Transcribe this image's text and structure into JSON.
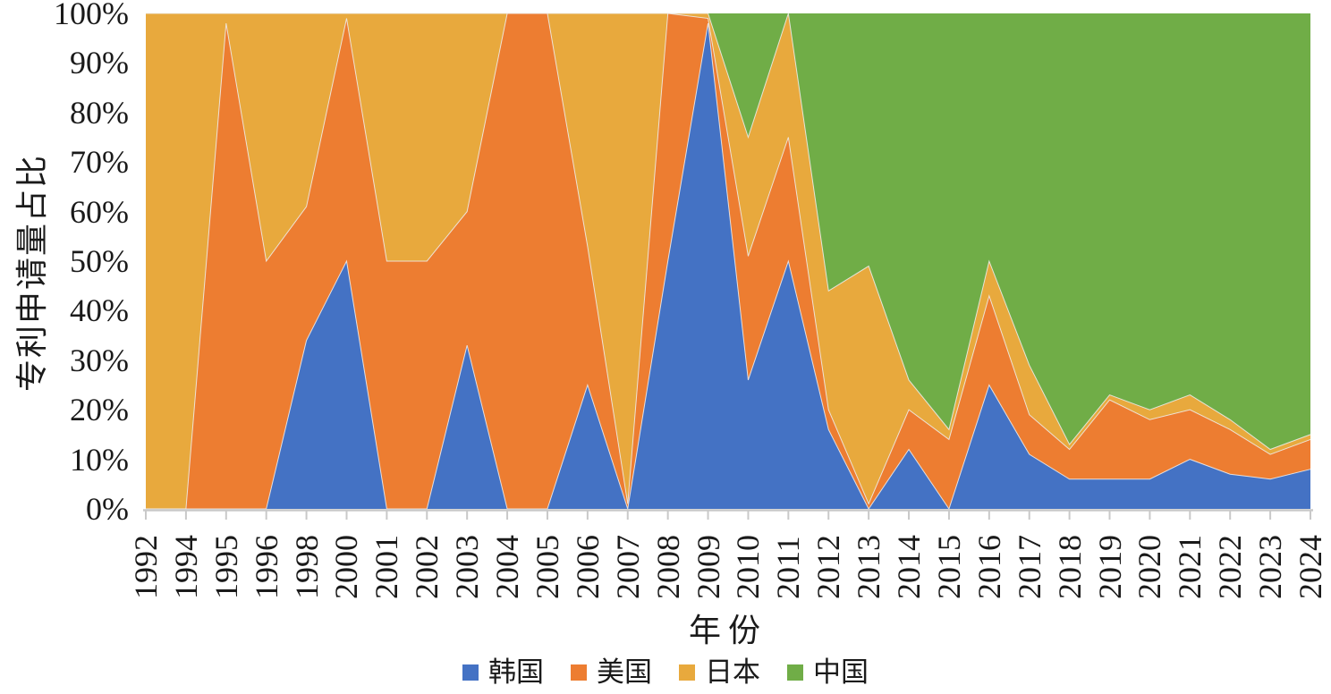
{
  "figure": {
    "x_axis_title": "年份",
    "y_axis_title": "专利申请量占比",
    "axis_color": "#c9c9c9",
    "text_color": "#1a1a1a",
    "background": "#ffffff"
  },
  "chart_data": {
    "type": "area",
    "stacking": "percent",
    "title": "",
    "xlabel": "年份",
    "ylabel": "专利申请量占比",
    "ylim": [
      0,
      100
    ],
    "grid": false,
    "legend_position": "bottom",
    "y_tick_labels": [
      "100%",
      "90%",
      "80%",
      "70%",
      "60%",
      "50%",
      "40%",
      "30%",
      "20%",
      "10%",
      "0%"
    ],
    "x": [
      "1992",
      "1994",
      "1995",
      "1996",
      "1998",
      "2000",
      "2001",
      "2002",
      "2003",
      "2004",
      "2005",
      "2006",
      "2007",
      "2008",
      "2009",
      "2010",
      "2011",
      "2012",
      "2013",
      "2014",
      "2015",
      "2016",
      "2017",
      "2018",
      "2019",
      "2020",
      "2021",
      "2022",
      "2023",
      "2024"
    ],
    "series": [
      {
        "name": "韩国",
        "color": "#4472c4",
        "values": [
          0,
          0,
          0,
          0,
          34,
          50,
          0,
          0,
          33,
          0,
          0,
          25,
          0,
          50,
          98,
          26,
          50,
          16,
          0,
          12,
          0,
          25,
          11,
          6,
          6,
          6,
          10,
          7,
          6,
          8
        ]
      },
      {
        "name": "美国",
        "color": "#ed7d31",
        "values": [
          0,
          0,
          98,
          50,
          27,
          49,
          50,
          50,
          27,
          100,
          100,
          28,
          1,
          50,
          1,
          25,
          25,
          4,
          1,
          8,
          14,
          18,
          8,
          6,
          16,
          12,
          10,
          9,
          5,
          6
        ]
      },
      {
        "name": "日本",
        "color": "#e8a93d",
        "values": [
          100,
          100,
          2,
          50,
          39,
          1,
          50,
          50,
          40,
          0,
          0,
          47,
          99,
          0,
          1,
          24,
          25,
          24,
          48,
          6,
          2,
          7,
          10,
          1,
          1,
          2,
          3,
          2,
          1,
          1
        ]
      },
      {
        "name": "中国",
        "color": "#70ad47",
        "values": [
          0,
          0,
          0,
          0,
          0,
          0,
          0,
          0,
          0,
          0,
          0,
          0,
          0,
          0,
          0,
          25,
          0,
          56,
          51,
          74,
          84,
          50,
          71,
          87,
          77,
          80,
          77,
          82,
          88,
          85
        ]
      }
    ]
  }
}
